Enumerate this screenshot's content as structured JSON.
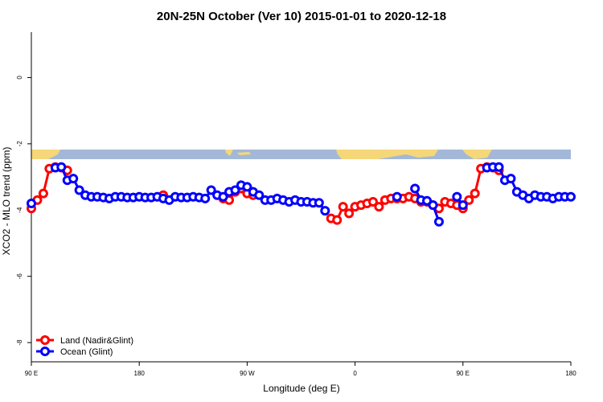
{
  "chart_data": {
    "type": "line",
    "title": "20N-25N October (Ver 10)   2015-01-01 to 2020-12-18",
    "x_label": "Longitude (deg E)",
    "y_label": "XCO2 - MLO trend (ppm)",
    "x": [
      90,
      95,
      100,
      105,
      110,
      115,
      120,
      125,
      130,
      135,
      140,
      145,
      150,
      155,
      160,
      165,
      170,
      175,
      180,
      185,
      190,
      195,
      200,
      205,
      210,
      215,
      220,
      225,
      230,
      235,
      240,
      245,
      250,
      255,
      260,
      265,
      270,
      275,
      280,
      285,
      290,
      295,
      300,
      305,
      310,
      315,
      320,
      325,
      330,
      335,
      340,
      345,
      350,
      355,
      360,
      365,
      370,
      375,
      380,
      385,
      390,
      395,
      400,
      405,
      410,
      415,
      420,
      425,
      430,
      435,
      440,
      445,
      450,
      455,
      460,
      465,
      470,
      475,
      480,
      485,
      490,
      495,
      500,
      505,
      510,
      515,
      520,
      525,
      530,
      535,
      540
    ],
    "xlim": [
      90,
      540
    ],
    "xticks": [
      {
        "value": 90,
        "label": "90 E"
      },
      180,
      {
        "value": 270,
        "label": "90 W"
      },
      {
        "value": 360,
        "label": "0"
      },
      {
        "value": 450,
        "label": "90 E"
      },
      {
        "value": 540,
        "label": "180"
      }
    ],
    "ylim": [
      -8.58,
      1.37
    ],
    "yticks": [
      0,
      -2,
      -4,
      -6,
      -8
    ],
    "legend": "bottom-left",
    "series": [
      {
        "name": "Land (Nadir&Glint)",
        "color": "#ff0000",
        "values": [
          -3.95,
          -3.7,
          -3.5,
          -2.75,
          -2.7,
          -2.72,
          -2.8,
          null,
          null,
          null,
          null,
          null,
          null,
          null,
          null,
          null,
          null,
          null,
          null,
          null,
          null,
          null,
          -3.55,
          null,
          null,
          null,
          null,
          null,
          null,
          null,
          null,
          null,
          -3.65,
          -3.7,
          -3.45,
          -3.35,
          -3.5,
          -3.55,
          null,
          null,
          null,
          null,
          null,
          null,
          null,
          null,
          null,
          null,
          null,
          null,
          -4.25,
          -4.3,
          -3.9,
          -4.1,
          -3.9,
          -3.85,
          -3.8,
          -3.75,
          -3.9,
          -3.7,
          -3.65,
          -3.65,
          -3.65,
          -3.6,
          -3.65,
          -3.75,
          -3.75,
          -3.85,
          -3.95,
          -3.75,
          -3.8,
          -3.85,
          -3.95,
          -3.7,
          -3.5,
          -2.75,
          -2.7,
          -2.72,
          -2.8,
          null,
          null,
          null,
          null,
          null,
          null,
          null,
          null,
          null,
          null,
          null,
          null
        ]
      },
      {
        "name": "Ocean (Glint)",
        "color": "#0000ff",
        "values": [
          -3.8,
          null,
          null,
          null,
          -2.72,
          -2.7,
          -3.1,
          -3.05,
          -3.4,
          -3.55,
          -3.6,
          -3.6,
          -3.62,
          -3.65,
          -3.6,
          -3.6,
          -3.62,
          -3.62,
          -3.6,
          -3.62,
          -3.62,
          -3.6,
          -3.65,
          -3.7,
          -3.6,
          -3.62,
          -3.62,
          -3.6,
          -3.62,
          -3.65,
          -3.4,
          -3.55,
          -3.6,
          -3.45,
          -3.4,
          -3.25,
          -3.3,
          -3.45,
          -3.55,
          -3.7,
          -3.7,
          -3.65,
          -3.7,
          -3.75,
          -3.7,
          -3.75,
          -3.75,
          -3.78,
          -3.78,
          -4.02,
          null,
          null,
          null,
          null,
          null,
          null,
          null,
          null,
          null,
          null,
          null,
          -3.6,
          null,
          null,
          -3.35,
          -3.7,
          -3.72,
          -3.85,
          -4.35,
          null,
          null,
          -3.6,
          -3.85,
          null,
          null,
          null,
          -2.72,
          -2.7,
          -2.7,
          -3.1,
          -3.05,
          -3.45,
          -3.55,
          -3.65,
          -3.55,
          -3.6,
          -3.6,
          -3.65,
          -3.6,
          -3.6,
          -3.6
        ]
      }
    ]
  }
}
